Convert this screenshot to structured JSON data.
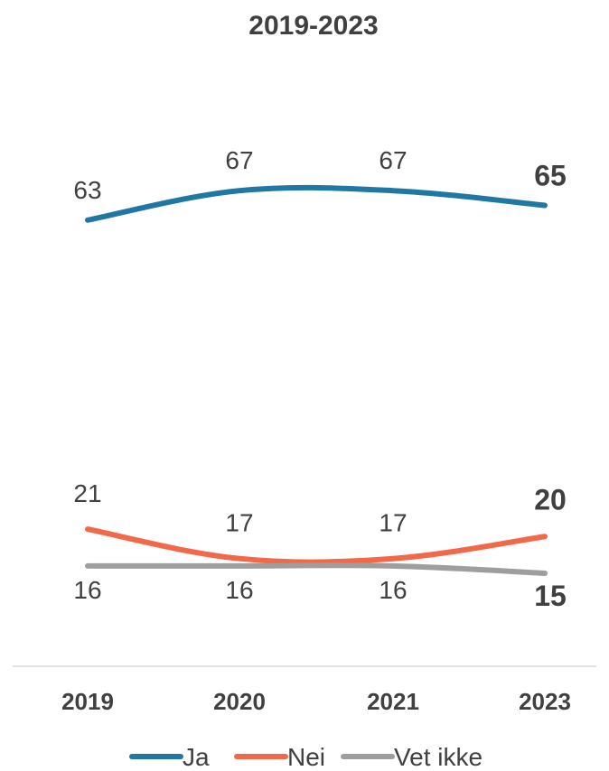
{
  "chart_data": {
    "type": "line",
    "title": "2019-2023",
    "xlabel": "",
    "ylabel": "",
    "categories": [
      "2019",
      "2020",
      "2021",
      "2023"
    ],
    "series": [
      {
        "name": "Ja",
        "color": "#1f77a3",
        "values": [
          63,
          67,
          67,
          65
        ]
      },
      {
        "name": "Nei",
        "color": "#f26849",
        "values": [
          21,
          17,
          17,
          20
        ]
      },
      {
        "name": "Vet ikke",
        "color": "#9e9e9e",
        "values": [
          16,
          16,
          16,
          15
        ]
      }
    ],
    "grid": false,
    "legend": "bottom",
    "last_value_bold": true
  }
}
